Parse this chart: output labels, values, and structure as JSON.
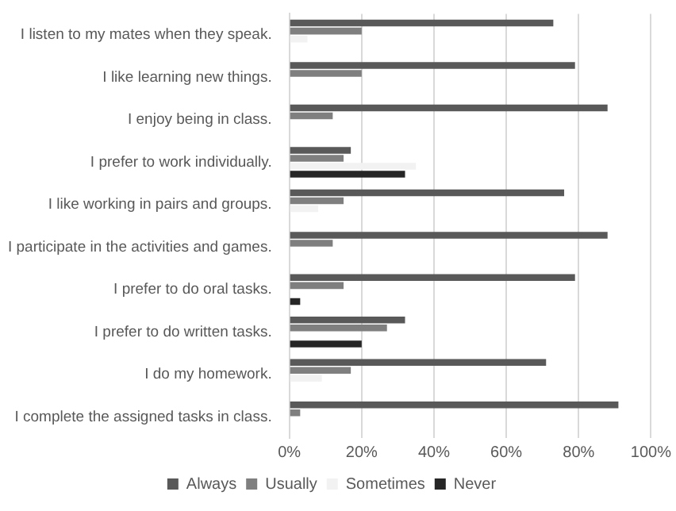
{
  "chart_data": {
    "type": "bar",
    "orientation": "horizontal",
    "categories": [
      "I listen to my mates when they speak.",
      "I like learning new things.",
      "I enjoy being in class.",
      "I prefer to work individually.",
      "I like working in pairs and groups.",
      "I participate in the activities and games.",
      "I prefer to do oral tasks.",
      "I prefer to do written tasks.",
      "I do my homework.",
      "I complete the assigned tasks in class."
    ],
    "series": [
      {
        "name": "Always",
        "color": "#595959",
        "values": [
          73,
          79,
          88,
          17,
          76,
          88,
          79,
          32,
          71,
          91
        ]
      },
      {
        "name": "Usually",
        "color": "#7f7f7f",
        "values": [
          20,
          20,
          12,
          15,
          15,
          12,
          15,
          27,
          17,
          3
        ]
      },
      {
        "name": "Sometimes",
        "color": "#f2f2f2",
        "values": [
          5,
          0,
          0,
          35,
          8,
          0,
          0,
          0,
          9,
          0
        ]
      },
      {
        "name": "Never",
        "color": "#262626",
        "values": [
          0,
          0,
          0,
          32,
          0,
          0,
          3,
          20,
          0,
          0
        ]
      }
    ],
    "xlim": [
      0,
      100
    ],
    "xticks": [
      {
        "value": 0,
        "label": "0%"
      },
      {
        "value": 20,
        "label": "20%"
      },
      {
        "value": 40,
        "label": "40%"
      },
      {
        "value": 60,
        "label": "60%"
      },
      {
        "value": 80,
        "label": "80%"
      },
      {
        "value": 100,
        "label": "100%"
      }
    ],
    "grid": "x",
    "legend": "bottom"
  }
}
